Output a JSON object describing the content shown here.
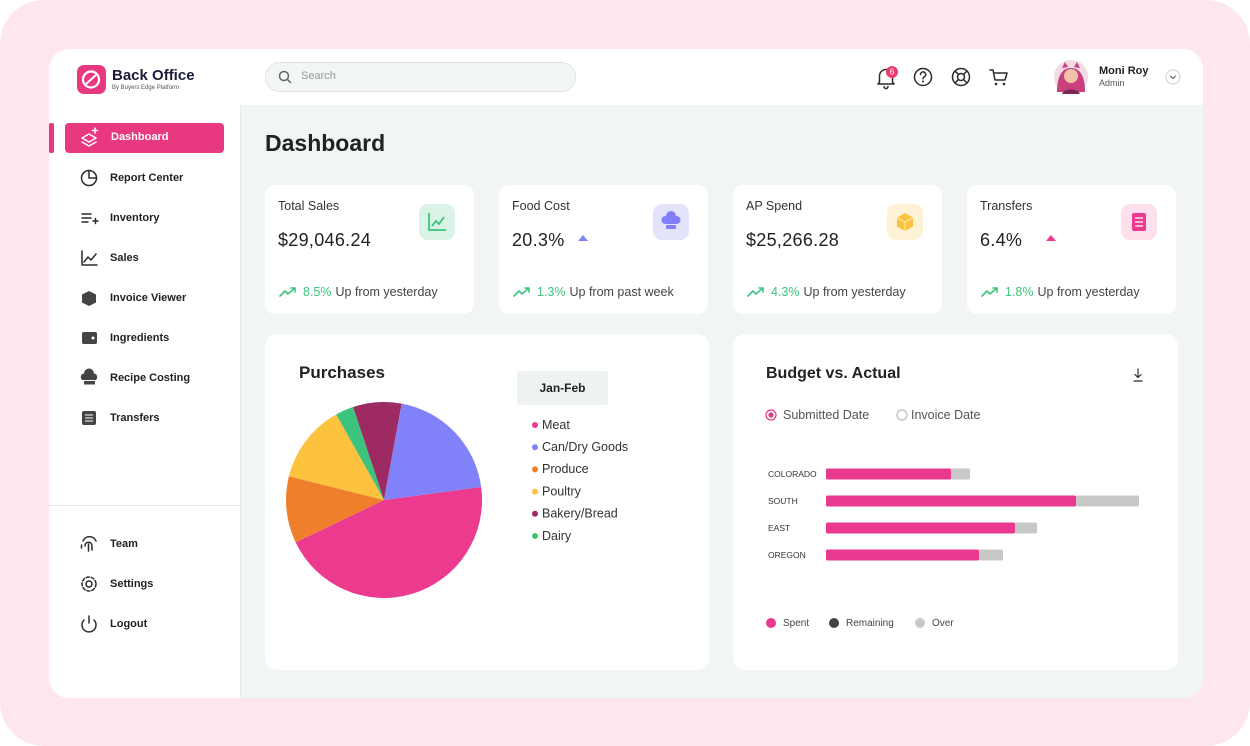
{
  "header": {
    "brand": "Back Office",
    "brand_sub": "By Buyers Edge Platform",
    "search_placeholder": "Search",
    "notification_count": 6,
    "user_name": "Moni Roy",
    "user_role": "Admin"
  },
  "sidebar": {
    "items": [
      "Dashboard",
      "Report Center",
      "Inventory",
      "Sales",
      "Invoice Viewer",
      "Ingredients",
      "Recipe Costing",
      "Transfers"
    ],
    "bottom_items": [
      "Team",
      "Settings",
      "Logout"
    ]
  },
  "page_title": "Dashboard",
  "cards": [
    {
      "label": "Total Sales",
      "value": "$29,046.24",
      "change": "8.5%",
      "note": "Up from yesterday"
    },
    {
      "label": "Food Cost",
      "value": "20.3%",
      "change": "1.3%",
      "note": "Up from past week"
    },
    {
      "label": "AP Spend",
      "value": "$25,266.28",
      "change": "4.3%",
      "note": "Up from yesterday"
    },
    {
      "label": "Transfers",
      "value": "6.4%",
      "change": "1.8%",
      "note": "Up from yesterday"
    }
  ],
  "chart_data": [
    {
      "type": "pie",
      "title": "Purchases",
      "period": "Jan-Feb",
      "categories": [
        "Meat",
        "Can/Dry Goods",
        "Produce",
        "Poultry",
        "Bakery/Bread",
        "Dairy"
      ],
      "values": [
        45,
        20,
        11,
        13,
        8,
        3
      ],
      "colors": [
        "#ec3b8f",
        "#8181fa",
        "#ef7f2a",
        "#fdc23e",
        "#9e2a63",
        "#3cc47d"
      ]
    },
    {
      "type": "bar",
      "orientation": "horizontal",
      "stacked": true,
      "title": "Budget vs. Actual",
      "filters": [
        "Submitted Date",
        "Invoice Date"
      ],
      "categories": [
        "COLORADO",
        "SOUTH",
        "EAST",
        "OREGON"
      ],
      "series": [
        {
          "name": "Spent",
          "color": "#e9398e",
          "values": [
            125,
            250,
            189,
            153
          ]
        },
        {
          "name": "Remaining",
          "color": "#444444",
          "values": [
            null,
            null,
            null,
            null
          ]
        },
        {
          "name": "Over",
          "color": "#c8c8c8",
          "values": [
            19,
            63,
            22,
            24
          ]
        }
      ]
    }
  ]
}
